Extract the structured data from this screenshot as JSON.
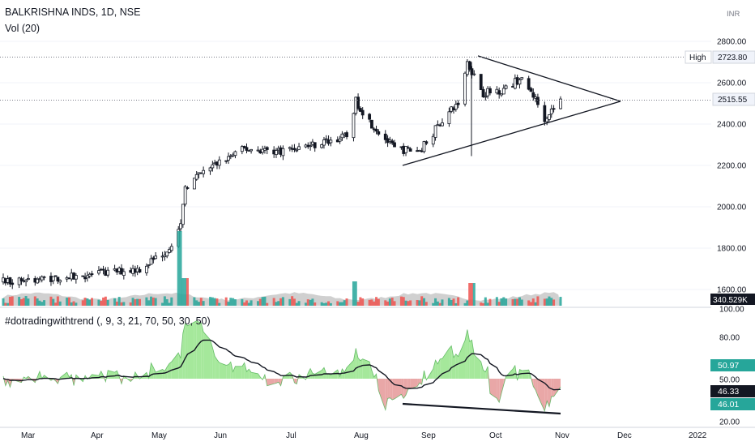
{
  "header": {
    "symbol_title": "BALKRISHNA INDS, 1D, NSE",
    "volume_label": "Vol (20)",
    "currency": "INR",
    "indicator_title": "#dotradingwithtrend (, 9, 3, 21, 70, 50, 30, 50)"
  },
  "colors": {
    "up": "#26a69a",
    "down": "#ef5350",
    "candle_body": "#131722",
    "indicator_green": "#a5e89b",
    "indicator_red": "#e9a7a7",
    "scale_bg": "#ffffff",
    "tag_dark": "#131722",
    "tag_green": "#26a69a"
  },
  "price_axis": {
    "ticks": [
      "2800.00",
      "2600.00",
      "2400.00",
      "2200.00",
      "2000.00",
      "1800.00",
      "1600.00"
    ],
    "high_label": "High",
    "high_value": "2723.80",
    "last_value": "2515.55",
    "volume_tag": "340.529K"
  },
  "indicator_axis": {
    "ticks": [
      "100.00",
      "80.00",
      "50.00",
      "20.00"
    ],
    "tag_green": "50.97",
    "tag_dark1": "46.33",
    "tag_dark2": "46.01"
  },
  "time_axis": {
    "labels": [
      "Mar",
      "Apr",
      "May",
      "Jun",
      "Jul",
      "Aug",
      "Sep",
      "Oct",
      "Nov",
      "Dec",
      "2022"
    ]
  },
  "chart_data": {
    "type": "candlestick",
    "title": "BALKRISHNA INDS, 1D, NSE",
    "x_labels": [
      "Mar",
      "Apr",
      "May",
      "Jun",
      "Jul",
      "Aug",
      "Sep",
      "Oct",
      "Nov",
      "Dec",
      "2022"
    ],
    "price_ylim": [
      1590,
      2870
    ],
    "high": 2723.8,
    "last": 2515.55,
    "closing_path": [
      [
        "2021-03-01",
        1640
      ],
      [
        "2021-03-15",
        1650
      ],
      [
        "2021-03-31",
        1660
      ],
      [
        "2021-04-15",
        1680
      ],
      [
        "2021-04-30",
        1700
      ],
      [
        "2021-05-12",
        1790
      ],
      [
        "2021-05-18",
        1900
      ],
      [
        "2021-05-20",
        2100
      ],
      [
        "2021-05-31",
        2190
      ],
      [
        "2021-06-15",
        2280
      ],
      [
        "2021-06-30",
        2270
      ],
      [
        "2021-07-15",
        2300
      ],
      [
        "2021-07-30",
        2340
      ],
      [
        "2021-08-03",
        2510
      ],
      [
        "2021-08-10",
        2400
      ],
      [
        "2021-08-20",
        2280
      ],
      [
        "2021-08-31",
        2270
      ],
      [
        "2021-09-10",
        2420
      ],
      [
        "2021-09-17",
        2500
      ],
      [
        "2021-09-21",
        2700
      ],
      [
        "2021-09-28",
        2550
      ],
      [
        "2021-10-08",
        2570
      ],
      [
        "2021-10-14",
        2620
      ],
      [
        "2021-10-20",
        2540
      ],
      [
        "2021-10-25",
        2430
      ],
      [
        "2021-11-01",
        2515.55
      ]
    ],
    "volume_tag": 340529,
    "indicator": {
      "name": "#dotradingwithtrend (, 9, 3, 21, 70, 50, 30, 50)",
      "ylim": [
        20,
        100
      ],
      "levels": [
        100,
        80,
        50,
        20
      ],
      "values": [
        50.97,
        46.33,
        46.01
      ]
    }
  }
}
